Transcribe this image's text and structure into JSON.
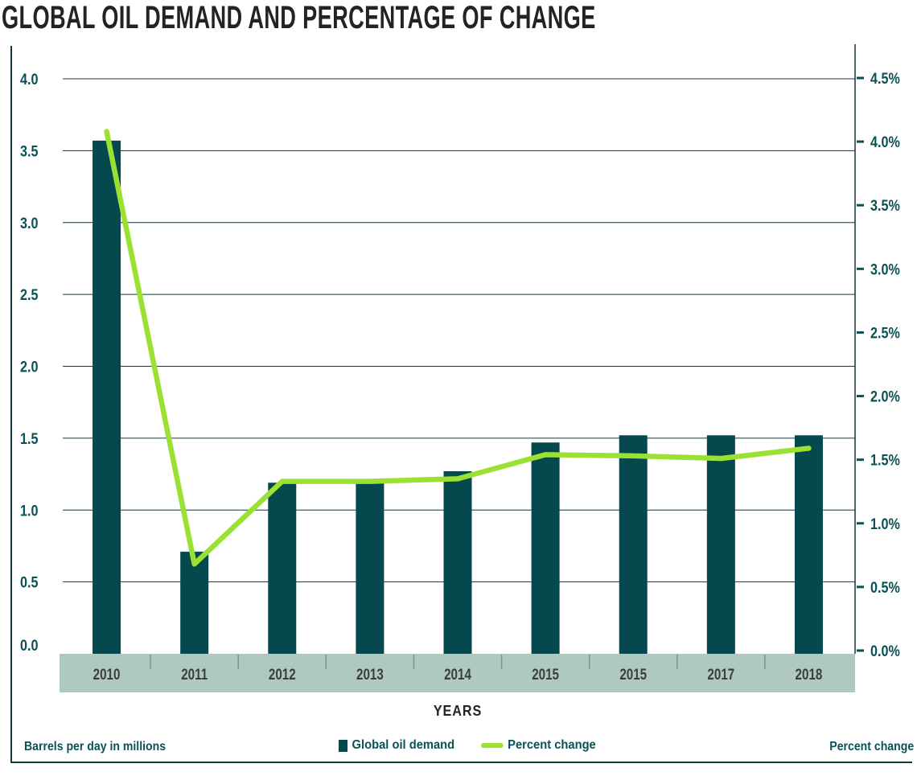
{
  "title": "GLOBAL OIL DEMAND AND PERCENTAGE OF CHANGE",
  "x_axis_title": "YEARS",
  "legend": {
    "left_note": "Barrels per day in millions",
    "right_note": "Percent change",
    "items": [
      {
        "label": "Global oil demand",
        "marker": "square"
      },
      {
        "label": "Percent change",
        "marker": "dash"
      }
    ]
  },
  "chart_data": {
    "type": "bar",
    "subtype": "bar-and-line-dual-axis",
    "title": "GLOBAL OIL DEMAND AND PERCENTAGE OF CHANGE",
    "xlabel": "YEARS",
    "categories": [
      "2010",
      "2011",
      "2012",
      "2013",
      "2014",
      "2015",
      "2015",
      "2017",
      "2018"
    ],
    "series": [
      {
        "name": "Global oil demand",
        "type": "bar",
        "axis": "left",
        "values": [
          3.57,
          0.71,
          1.19,
          1.19,
          1.27,
          1.47,
          1.52,
          1.52,
          1.52
        ]
      },
      {
        "name": "Percent change",
        "type": "line",
        "axis": "right",
        "values": [
          4.08,
          0.68,
          1.33,
          1.33,
          1.35,
          1.54,
          1.53,
          1.51,
          1.59
        ]
      }
    ],
    "left_axis": {
      "label": "Barrels per day in millions",
      "min": 0,
      "max": 4.0,
      "ticks": [
        "0.0",
        "0.5",
        "1.0",
        "1.5",
        "2.0",
        "2.5",
        "3.0",
        "3.5",
        "4.0"
      ]
    },
    "right_axis": {
      "label": "Percent change",
      "min": 0,
      "max": 4.5,
      "ticks": [
        "0.0%",
        "0.5%",
        "1.0%",
        "1.5%",
        "2.0%",
        "2.5%",
        "3.0%",
        "3.5%",
        "4.0%",
        "4.5%"
      ]
    },
    "grid": "horizontal",
    "legend_position": "bottom",
    "colors": {
      "bar": "#05494E",
      "line": "#9BE134",
      "band": "#AFC9BF",
      "band_divider": "#7A958D",
      "grid": "#16363B",
      "frame": "#10393D",
      "teal_text": "#0A5156",
      "year_text": "#3A3F3C",
      "title_text": "#232323"
    }
  }
}
